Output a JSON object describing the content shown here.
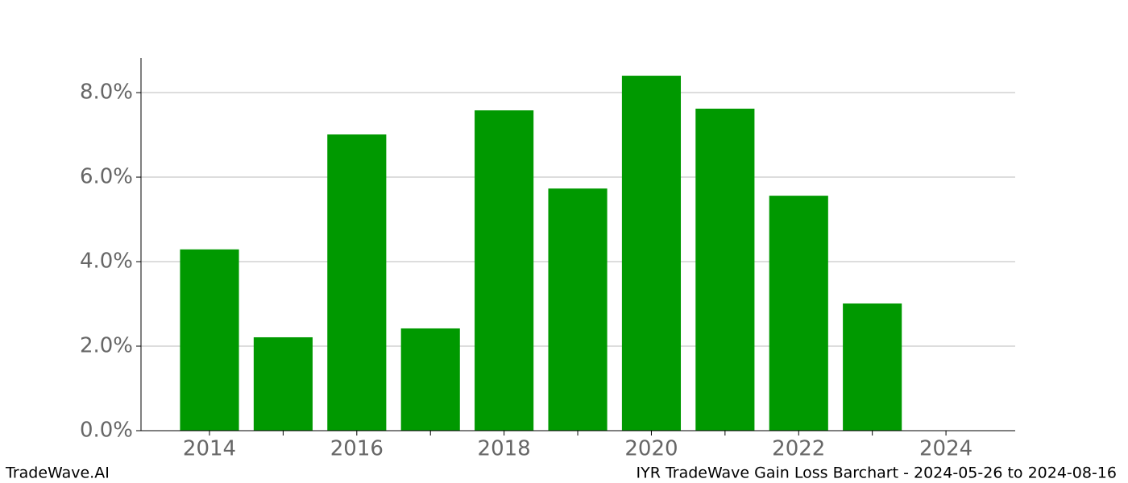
{
  "chart_data": {
    "type": "bar",
    "x": [
      2014,
      2015,
      2016,
      2017,
      2018,
      2019,
      2020,
      2021,
      2022,
      2023
    ],
    "values": [
      4.29,
      2.21,
      7.01,
      2.42,
      7.58,
      5.73,
      8.4,
      7.62,
      5.56,
      3.01
    ],
    "color": "#009900",
    "xlim": [
      2013.07,
      2024.94
    ],
    "xticks": [
      2014,
      2016,
      2018,
      2020,
      2022,
      2024
    ],
    "xminorticks": [
      2015,
      2017,
      2019,
      2021,
      2023
    ],
    "ylim": [
      0,
      8.82
    ],
    "yticks": [
      {
        "value": 0,
        "label": "0.0%"
      },
      {
        "value": 2,
        "label": "2.0%"
      },
      {
        "value": 4,
        "label": "4.0%"
      },
      {
        "value": 6,
        "label": "6.0%"
      },
      {
        "value": 8,
        "label": "8.0%"
      }
    ],
    "grid": true,
    "footer_left": "TradeWave.AI",
    "footer_right": "IYR TradeWave Gain Loss Barchart - 2024-05-26 to 2024-08-16"
  }
}
